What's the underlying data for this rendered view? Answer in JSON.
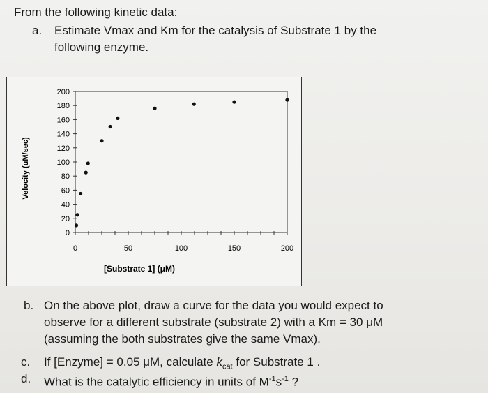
{
  "problem": {
    "intro": "From the following kinetic data:",
    "part_a": {
      "label": "a.",
      "line1": "Estimate Vmax and Km for the catalysis of Substrate 1 by the",
      "line2": "following enzyme."
    },
    "part_b": {
      "label": "b.",
      "line1": "On the above plot, draw a curve for the data you would expect to",
      "line2": "observe for a different substrate (substrate 2) with a Km = 30 μM",
      "line3": "(assuming the both substrates give the same Vmax)."
    },
    "part_c": {
      "label": "c.",
      "text_before": "If [Enzyme] = 0.05 μM, calculate ",
      "kcat_k": "k",
      "kcat_sub": "cat",
      "text_after": " for Substrate 1 ."
    },
    "part_d": {
      "label": "d.",
      "text_before": "What is the catalytic efficiency in units of M",
      "sup1": "-1",
      "s": "s",
      "sup2": "-1",
      "text_after": " ?"
    }
  },
  "chart_data": {
    "type": "scatter",
    "xlabel": "[Substrate 1] (μM)",
    "ylabel": "Velocity (uM/sec)",
    "xlim": [
      0,
      200
    ],
    "ylim": [
      0,
      200
    ],
    "x_ticks": [
      0,
      50,
      100,
      150,
      200
    ],
    "y_ticks": [
      0,
      20,
      40,
      60,
      80,
      100,
      120,
      140,
      160,
      180,
      200
    ],
    "grid": false,
    "points": [
      {
        "x": 1,
        "y": 10
      },
      {
        "x": 2,
        "y": 25
      },
      {
        "x": 5,
        "y": 55
      },
      {
        "x": 10,
        "y": 85
      },
      {
        "x": 12,
        "y": 98
      },
      {
        "x": 25,
        "y": 130
      },
      {
        "x": 33,
        "y": 150
      },
      {
        "x": 40,
        "y": 162
      },
      {
        "x": 75,
        "y": 176
      },
      {
        "x": 112,
        "y": 182
      },
      {
        "x": 150,
        "y": 185
      },
      {
        "x": 200,
        "y": 188
      }
    ]
  }
}
